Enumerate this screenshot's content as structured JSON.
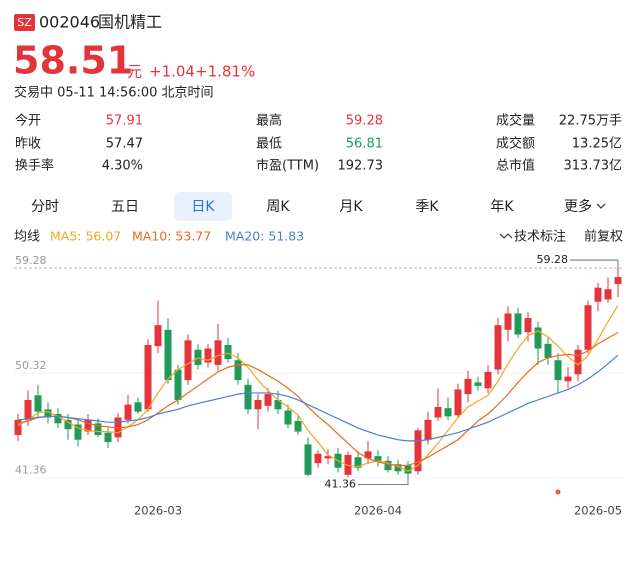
{
  "header": {
    "badge": "SZ",
    "code": "002046",
    "name": "国机精工",
    "price": "58.51",
    "unit": "元",
    "change": "+1.04",
    "change_pct": "+1.81%",
    "status": "交易中 05-11 14:56:00 北京时间"
  },
  "stats": [
    {
      "label": "今开",
      "value": "57.91",
      "tone": "up"
    },
    {
      "label": "最高",
      "value": "59.28",
      "tone": "up"
    },
    {
      "label": "成交量",
      "value": "22.75万手"
    },
    {
      "label": "昨收",
      "value": "57.47"
    },
    {
      "label": "最低",
      "value": "56.81",
      "tone": "down"
    },
    {
      "label": "成交额",
      "value": "13.25亿"
    },
    {
      "label": "换手率",
      "value": "4.30%"
    },
    {
      "label": "市盈(TTM)",
      "value": "192.73"
    },
    {
      "label": "总市值",
      "value": "313.73亿"
    }
  ],
  "tabs": [
    "分时",
    "五日",
    "日K",
    "周K",
    "月K",
    "季K",
    "年K",
    "更多"
  ],
  "selected_tab": 2,
  "chart_data": {
    "type": "candlestick",
    "legend_title": "均线",
    "tools": [
      "技术标注",
      "前复权"
    ],
    "up_color": "#e3343c",
    "down_color": "#1f9a5a",
    "categories": [
      null,
      null,
      null,
      null,
      null,
      null,
      null,
      null,
      null,
      null,
      null,
      null,
      null,
      null,
      "2026-03",
      null,
      null,
      null,
      null,
      null,
      null,
      null,
      null,
      null,
      null,
      null,
      null,
      null,
      null,
      null,
      null,
      null,
      null,
      null,
      null,
      null,
      "2026-04",
      null,
      null,
      null,
      null,
      null,
      null,
      null,
      null,
      null,
      null,
      null,
      null,
      null,
      null,
      null,
      null,
      null,
      null,
      null,
      null,
      null,
      "2026-05",
      null,
      null
    ],
    "open": [
      45.0,
      46.3,
      48.4,
      47.2,
      46.8,
      46.3,
      45.9,
      45.3,
      46.0,
      45.2,
      44.8,
      46.3,
      47.8,
      47.2,
      52.6,
      54.0,
      50.6,
      49.7,
      52.3,
      51.2,
      51.0,
      52.7,
      51.4,
      49.3,
      47.2,
      47.5,
      48.0,
      47.1,
      46.2,
      44.2,
      42.6,
      43.0,
      43.4,
      41.6,
      43.1,
      43.0,
      43.2,
      42.8,
      42.5,
      42.4,
      41.9,
      44.6,
      46.5,
      47.3,
      46.7,
      48.5,
      49.5,
      49.0,
      50.6,
      54.0,
      55.4,
      53.8,
      54.2,
      52.8,
      51.4,
      49.6,
      50.2,
      52.3,
      56.4,
      56.6,
      57.91
    ],
    "high": [
      46.8,
      48.8,
      49.3,
      47.8,
      47.3,
      46.8,
      46.4,
      46.8,
      46.4,
      45.6,
      46.9,
      48.4,
      48.2,
      53.2,
      56.5,
      55.0,
      51.0,
      53.6,
      52.8,
      52.8,
      54.5,
      53.3,
      52.0,
      49.8,
      48.5,
      49.0,
      48.8,
      47.6,
      46.6,
      44.8,
      43.7,
      43.8,
      43.9,
      43.6,
      43.6,
      44.5,
      43.7,
      43.2,
      42.9,
      42.8,
      45.6,
      47.0,
      49.0,
      48.2,
      49.4,
      50.5,
      50.0,
      51.0,
      55.0,
      56.0,
      55.9,
      55.5,
      54.7,
      53.3,
      52.0,
      50.8,
      52.7,
      56.5,
      58.0,
      58.5,
      59.28
    ],
    "low": [
      44.5,
      45.8,
      46.5,
      46.0,
      45.6,
      44.6,
      44.0,
      45.0,
      44.8,
      43.9,
      44.4,
      46.0,
      46.8,
      47.0,
      52.0,
      49.4,
      47.6,
      49.3,
      50.6,
      50.8,
      50.5,
      51.2,
      49.3,
      46.8,
      45.5,
      47.0,
      46.8,
      45.6,
      45.0,
      41.5,
      42.2,
      42.5,
      41.8,
      41.4,
      41.9,
      42.5,
      42.3,
      41.8,
      41.6,
      41.36,
      41.6,
      44.2,
      46.2,
      46.3,
      46.4,
      47.8,
      48.8,
      48.6,
      50.2,
      53.0,
      53.3,
      53.0,
      51.0,
      51.0,
      48.6,
      49.0,
      49.6,
      52.0,
      55.6,
      56.3,
      56.81
    ],
    "close": [
      46.3,
      48.0,
      47.0,
      46.5,
      46.0,
      45.5,
      44.6,
      46.3,
      45.0,
      44.4,
      46.5,
      47.6,
      47.0,
      52.7,
      54.4,
      49.7,
      48.0,
      53.1,
      51.0,
      52.4,
      53.1,
      51.5,
      49.7,
      47.2,
      48.0,
      48.5,
      47.2,
      45.9,
      45.3,
      41.6,
      43.4,
      43.2,
      42.2,
      43.3,
      42.2,
      43.6,
      42.7,
      42.0,
      41.9,
      41.7,
      45.4,
      46.3,
      47.4,
      46.6,
      48.9,
      49.8,
      49.2,
      50.4,
      54.4,
      55.4,
      53.6,
      55.0,
      52.4,
      51.6,
      49.7,
      50.0,
      52.3,
      56.1,
      57.6,
      57.47,
      58.51
    ],
    "series": [
      {
        "name": "MA5: 56.07",
        "color": "#f0a81e",
        "values": [
          45.8,
          46.3,
          46.9,
          47.0,
          46.6,
          46.1,
          45.6,
          45.4,
          45.3,
          45.3,
          45.2,
          45.7,
          46.3,
          47.2,
          48.6,
          49.8,
          50.6,
          51.1,
          51.6,
          51.4,
          51.8,
          52.0,
          51.6,
          50.8,
          49.7,
          48.8,
          48.0,
          47.4,
          46.7,
          45.4,
          44.4,
          43.3,
          42.8,
          42.4,
          42.3,
          42.6,
          42.8,
          42.6,
          42.3,
          41.9,
          42.4,
          43.3,
          44.3,
          45.4,
          46.5,
          47.4,
          47.9,
          48.4,
          49.6,
          51.1,
          52.4,
          53.5,
          53.9,
          53.4,
          52.6,
          51.7,
          51.0,
          51.8,
          53.2,
          54.7,
          56.07
        ]
      },
      {
        "name": "MA10: 53.77",
        "color": "#ea6a1e",
        "values": [
          46.0,
          46.2,
          46.5,
          46.6,
          46.6,
          46.5,
          46.3,
          46.0,
          45.8,
          45.7,
          45.6,
          45.7,
          45.9,
          46.3,
          46.9,
          47.5,
          48.0,
          48.6,
          49.2,
          49.8,
          50.4,
          50.8,
          51.0,
          51.0,
          50.6,
          50.1,
          49.6,
          49.0,
          48.3,
          47.4,
          46.6,
          45.9,
          45.1,
          44.3,
          43.5,
          43.0,
          42.7,
          42.5,
          42.4,
          42.4,
          42.7,
          43.1,
          43.6,
          44.1,
          44.6,
          45.4,
          46.2,
          46.8,
          47.6,
          48.5,
          49.5,
          50.4,
          51.2,
          51.6,
          51.8,
          51.9,
          51.8,
          52.2,
          52.8,
          53.3,
          53.77
        ]
      },
      {
        "name": "MA20: 51.83",
        "color": "#4a7fd6",
        "values": [
          46.3,
          46.4,
          46.5,
          46.6,
          46.6,
          46.5,
          46.4,
          46.3,
          46.2,
          46.1,
          46.1,
          46.2,
          46.3,
          46.5,
          46.8,
          47.0,
          47.2,
          47.5,
          47.7,
          47.9,
          48.1,
          48.3,
          48.5,
          48.6,
          48.6,
          48.6,
          48.5,
          48.3,
          48.0,
          47.6,
          47.2,
          46.8,
          46.4,
          46.0,
          45.6,
          45.3,
          45.0,
          44.8,
          44.6,
          44.5,
          44.5,
          44.6,
          44.8,
          45.0,
          45.2,
          45.5,
          45.8,
          46.1,
          46.5,
          46.9,
          47.3,
          47.7,
          48.0,
          48.3,
          48.6,
          48.9,
          49.3,
          49.8,
          50.4,
          51.1,
          51.83
        ]
      }
    ],
    "ylim": [
      40.3,
      59.8
    ],
    "yticks": [
      59.28,
      50.32,
      41.36
    ],
    "high_label": 59.28,
    "low_label": 41.36
  }
}
